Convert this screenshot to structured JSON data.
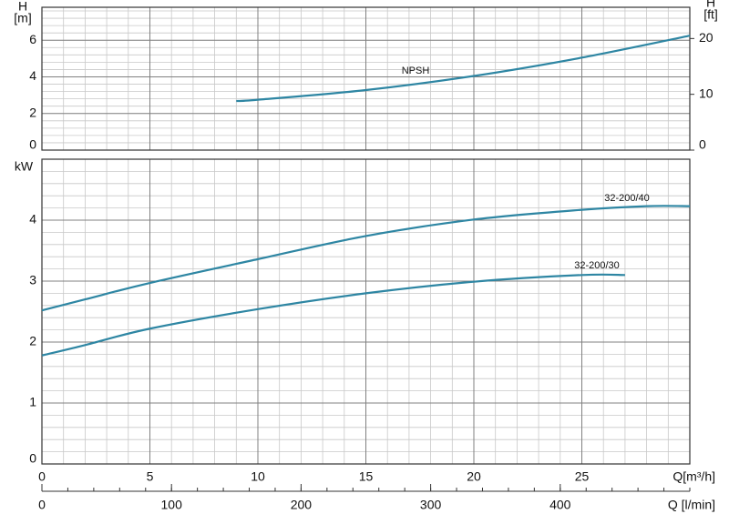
{
  "chart_data": [
    {
      "type": "line",
      "ylabel_lines": [
        "H",
        "[m]"
      ],
      "y2label_lines": [
        "H",
        "[ft]"
      ],
      "xlim": [
        0,
        30
      ],
      "xticks": [
        0,
        5,
        10,
        15,
        20,
        25
      ],
      "ylim": [
        0,
        7.8
      ],
      "yticks": [
        0,
        2,
        4,
        6
      ],
      "y2lim": [
        0,
        25.6
      ],
      "y2ticks": [
        0,
        10,
        20
      ],
      "grid": true,
      "minor_divisions": 5,
      "series": [
        {
          "name": "NPSH",
          "color": "#2e86a3",
          "x": [
            9,
            10,
            15,
            20,
            25,
            30
          ],
          "values": [
            2.68,
            2.75,
            3.28,
            4.05,
            5.05,
            6.25
          ]
        }
      ]
    },
    {
      "type": "line",
      "ylabel": "kW",
      "xlabel": "Q[m³/h]",
      "x2label": "Q [l/min]",
      "xlim": [
        0,
        30
      ],
      "xticks": [
        0,
        5,
        10,
        15,
        20,
        25
      ],
      "x2lim": [
        0,
        500
      ],
      "x2ticks": [
        0,
        100,
        200,
        300,
        400
      ],
      "ylim": [
        0,
        5
      ],
      "yticks": [
        0,
        1,
        2,
        3,
        4
      ],
      "grid": true,
      "minor_divisions": 5,
      "series": [
        {
          "name": "32-200/40",
          "color": "#2e86a3",
          "x": [
            0,
            2,
            5,
            10,
            15,
            20,
            25,
            28,
            30
          ],
          "values": [
            2.52,
            2.7,
            2.97,
            3.36,
            3.74,
            4.01,
            4.17,
            4.23,
            4.23
          ]
        },
        {
          "name": "32-200/30",
          "color": "#2e86a3",
          "x": [
            0,
            2,
            5,
            10,
            15,
            20,
            25,
            27
          ],
          "values": [
            1.78,
            1.95,
            2.22,
            2.54,
            2.8,
            2.99,
            3.1,
            3.1
          ]
        }
      ]
    }
  ]
}
